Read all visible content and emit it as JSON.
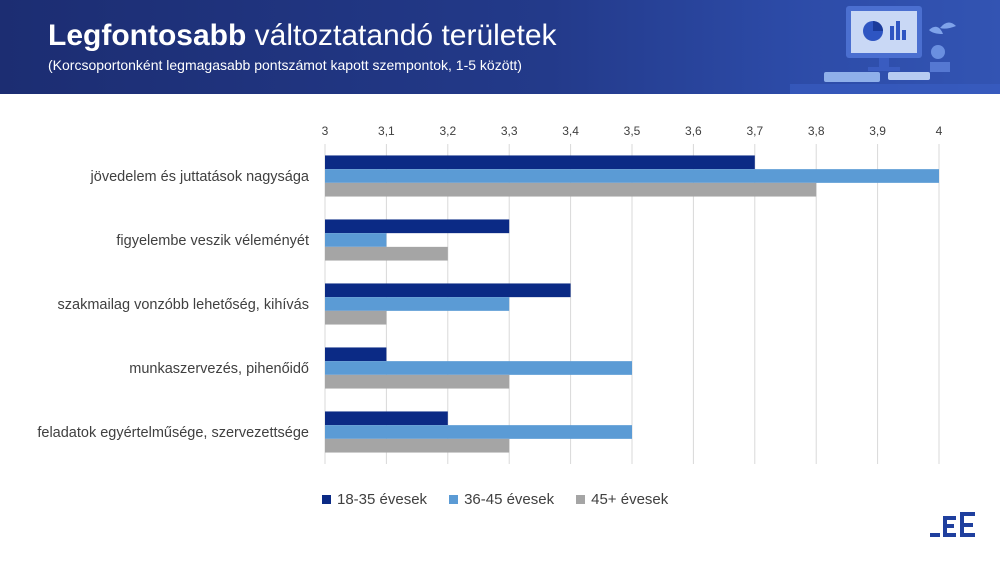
{
  "header": {
    "title_bold": "Legfontosabb",
    "title_rest": " változtatandó területek",
    "subtitle": "(Korcsoportonként legmagasabb pontszámot kapott szempontok, 1-5 között)"
  },
  "icons": {
    "banner": "computer-desk-illustration",
    "logo": "ee-logo"
  },
  "colors": {
    "banner": "#233a8a",
    "series": [
      "#0b2a85",
      "#5b9bd5",
      "#a5a5a5"
    ],
    "grid": "#d9d9d9",
    "text": "#404040"
  },
  "chart_data": {
    "type": "bar",
    "orientation": "horizontal",
    "categories": [
      "jövedelem és juttatások nagysága",
      "figyelembe veszik véleményét",
      "szakmailag vonzóbb lehetőség, kihívás",
      "munkaszervezés, pihenőidő",
      "feladatok egyértelműsége, szervezettsége"
    ],
    "series": [
      {
        "name": "18-35 évesek",
        "values": [
          3.7,
          3.3,
          3.4,
          3.1,
          3.2
        ]
      },
      {
        "name": "36-45 évesek",
        "values": [
          4.0,
          3.1,
          3.3,
          3.5,
          3.5
        ]
      },
      {
        "name": "45+ évesek",
        "values": [
          3.8,
          3.2,
          3.1,
          3.3,
          3.3
        ]
      }
    ],
    "xlim": [
      3,
      4
    ],
    "ticks": [
      "3",
      "3,1",
      "3,2",
      "3,3",
      "3,4",
      "3,5",
      "3,6",
      "3,7",
      "3,8",
      "3,9",
      "4"
    ],
    "grid": true,
    "axis_position": "top",
    "legend_position": "bottom"
  }
}
